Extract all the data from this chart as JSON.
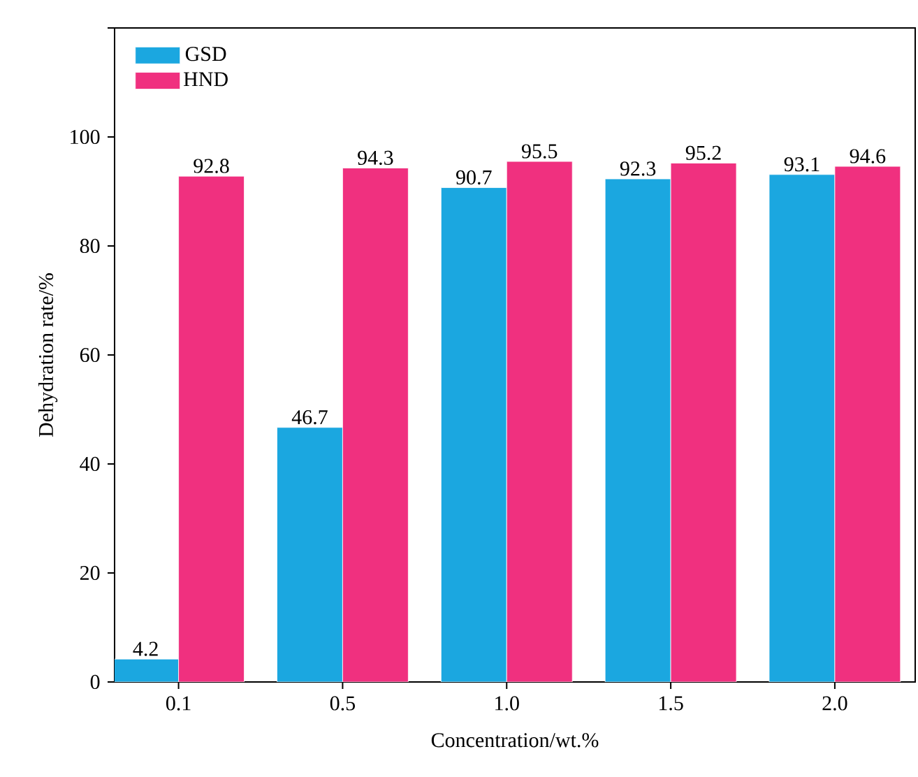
{
  "chart_data": {
    "type": "bar",
    "xlabel": "Concentration/wt.%",
    "ylabel": "Dehydration rate/%",
    "categories": [
      "0.1",
      "0.5",
      "1.0",
      "1.5",
      "2.0"
    ],
    "series": [
      {
        "name": "GSD",
        "color": "#1ba7e0",
        "values": [
          4.2,
          46.7,
          90.7,
          92.3,
          93.1
        ]
      },
      {
        "name": "HND",
        "color": "#f0307f",
        "values": [
          92.8,
          94.3,
          95.5,
          95.2,
          94.6
        ]
      }
    ],
    "ylim": [
      0,
      120
    ],
    "yticks": [
      0,
      20,
      40,
      60,
      80,
      100,
      {
        "value": 120,
        "label": null
      }
    ],
    "data_labels": true,
    "legend": "top left",
    "grid": false
  }
}
